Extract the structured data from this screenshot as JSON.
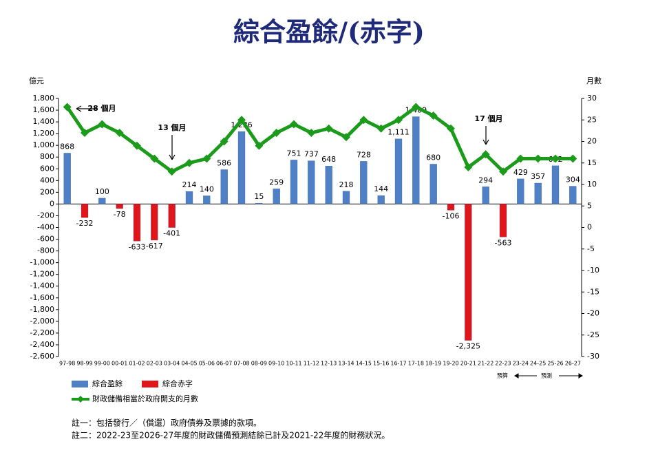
{
  "chart_data": {
    "type": "bar",
    "title": "綜合盈餘/(赤字)",
    "y_label": "億元",
    "y2_label": "月數",
    "categories": [
      "97-98",
      "98-99",
      "99-00",
      "00-01",
      "01-02",
      "02-03",
      "03-04",
      "04-05",
      "05-06",
      "06-07",
      "07-08",
      "08-09",
      "09-10",
      "10-11",
      "11-12",
      "12-13",
      "13-14",
      "14-15",
      "15-16",
      "16-17",
      "17-18",
      "18-19",
      "19-20",
      "20-21",
      "21-22",
      "22-23",
      "23-24",
      "24-25",
      "25-26",
      "26-27"
    ],
    "series": [
      {
        "name": "綜合盈餘",
        "type": "bar",
        "color": "#4f7fc4",
        "values": [
          868,
          null,
          100,
          null,
          null,
          null,
          null,
          214,
          140,
          586,
          1236,
          15,
          259,
          751,
          737,
          648,
          218,
          728,
          144,
          1111,
          1489,
          680,
          null,
          null,
          294,
          null,
          429,
          357,
          652,
          304
        ],
        "value_labels": [
          "868",
          null,
          "100",
          null,
          null,
          null,
          null,
          "214",
          "140",
          "586",
          "1,236",
          "15",
          "259",
          "751",
          "737",
          "648",
          "218",
          "728",
          "144",
          "1,111",
          "1,489",
          "680",
          null,
          null,
          "294",
          null,
          "429",
          "357",
          "652",
          "304"
        ]
      },
      {
        "name": "綜合赤字",
        "type": "bar",
        "color": "#e0161b",
        "values": [
          null,
          -232,
          null,
          -78,
          -633,
          -617,
          -401,
          null,
          null,
          null,
          null,
          null,
          null,
          null,
          null,
          null,
          null,
          null,
          null,
          null,
          null,
          null,
          -106,
          -2325,
          null,
          -563,
          null,
          null,
          null,
          null
        ],
        "value_labels": [
          null,
          "-232",
          null,
          "-78",
          "-633",
          "-617",
          "-401",
          null,
          null,
          null,
          null,
          null,
          null,
          null,
          null,
          null,
          null,
          null,
          null,
          null,
          null,
          null,
          "-106",
          "-2,325",
          null,
          "-563",
          null,
          null,
          null,
          null
        ]
      },
      {
        "name": "財政儲備相當於政府開支的月數",
        "type": "line",
        "axis": "y2",
        "color": "#1c9a1c",
        "values": [
          28,
          22,
          24,
          22,
          19,
          16,
          13,
          15,
          16,
          20,
          25,
          19,
          22,
          24,
          22,
          23,
          21,
          25,
          23,
          25,
          28,
          26,
          23,
          14,
          17,
          13,
          16,
          16,
          16,
          16
        ]
      }
    ],
    "ylim": [
      -2600,
      1800
    ],
    "yticks": [
      {
        "value": 1800,
        "label": "1,800"
      },
      {
        "value": 1600,
        "label": "1,600"
      },
      {
        "value": 1400,
        "label": "1,400"
      },
      {
        "value": 1200,
        "label": "1,200"
      },
      {
        "value": 1000,
        "label": "1,000"
      },
      800,
      600,
      400,
      200,
      0,
      -200,
      -400,
      -600,
      -800,
      {
        "value": -1000,
        "label": "-1,000"
      },
      {
        "value": -1200,
        "label": "-1,200"
      },
      {
        "value": -1400,
        "label": "-1,400"
      },
      {
        "value": -1600,
        "label": "-1,600"
      },
      {
        "value": -1800,
        "label": "-1,800"
      },
      {
        "value": -2000,
        "label": "-2,000"
      },
      {
        "value": -2200,
        "label": "-2,200"
      },
      {
        "value": -2400,
        "label": "-2,400"
      },
      {
        "value": -2600,
        "label": "-2,600"
      }
    ],
    "y2lim": [
      -30,
      30
    ],
    "y2ticks": [
      30,
      25,
      20,
      15,
      10,
      5,
      0,
      -5,
      -10,
      -15,
      -20,
      -25,
      -30
    ],
    "annotations": [
      "28 個月",
      "13 個月",
      "17 個月"
    ],
    "period_labels": [
      "預算",
      "預測"
    ],
    "notes": [
      "註一：包括發行／（償還）政府債券及票據的款項。",
      "註二：2022-23至2026-27年度的財政儲備預測結餘已計及2021-22年度的財務狀況。"
    ]
  }
}
